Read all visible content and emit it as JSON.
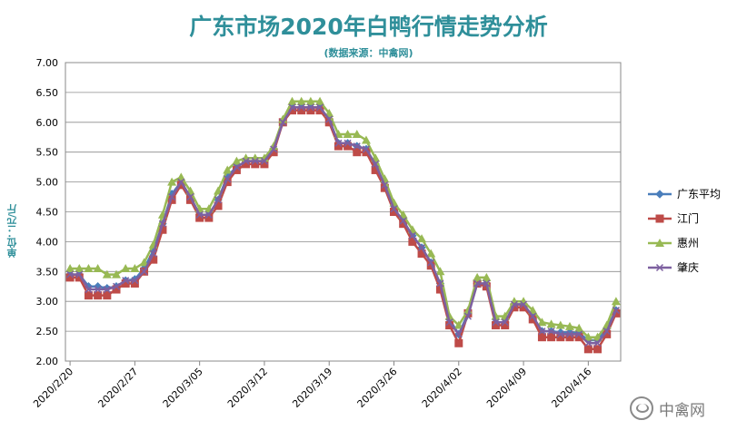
{
  "chart_data": {
    "type": "line",
    "title": "广东市场2020年白鸭行情走势分析",
    "subtitle": "(数据来源：中禽网)",
    "ylabel": "单位：元/斤",
    "ylim": [
      2.0,
      7.0
    ],
    "yticks": [
      "7.00",
      "6.50",
      "6.00",
      "5.50",
      "5.00",
      "4.50",
      "4.00",
      "3.50",
      "3.00",
      "2.50",
      "2.00"
    ],
    "xtick_labels": [
      "2020/2/20",
      "2020/2/27",
      "2020/3/05",
      "2020/3/12",
      "2020/3/19",
      "2020/3/26",
      "2020/4/02",
      "2020/4/09",
      "2020/4/16"
    ],
    "grid": true,
    "legend_position": "right",
    "x": [
      "2020/2/20",
      "2020/2/21",
      "2020/2/22",
      "2020/2/23",
      "2020/2/24",
      "2020/2/25",
      "2020/2/26",
      "2020/2/27",
      "2020/2/28",
      "2020/2/29",
      "2020/3/01",
      "2020/3/02",
      "2020/3/03",
      "2020/3/04",
      "2020/3/05",
      "2020/3/06",
      "2020/3/07",
      "2020/3/08",
      "2020/3/09",
      "2020/3/10",
      "2020/3/11",
      "2020/3/12",
      "2020/3/13",
      "2020/3/14",
      "2020/3/15",
      "2020/3/16",
      "2020/3/17",
      "2020/3/18",
      "2020/3/19",
      "2020/3/20",
      "2020/3/21",
      "2020/3/22",
      "2020/3/23",
      "2020/3/24",
      "2020/3/25",
      "2020/3/26",
      "2020/3/27",
      "2020/3/28",
      "2020/3/29",
      "2020/3/30",
      "2020/3/31",
      "2020/4/01",
      "2020/4/02",
      "2020/4/03",
      "2020/4/04",
      "2020/4/05",
      "2020/4/06",
      "2020/4/07",
      "2020/4/08",
      "2020/4/09",
      "2020/4/10",
      "2020/4/11",
      "2020/4/12",
      "2020/4/13",
      "2020/4/14",
      "2020/4/15",
      "2020/4/16",
      "2020/4/17",
      "2020/4/18",
      "2020/4/19"
    ],
    "series": [
      {
        "name": "广东平均",
        "color": "#4a7ebb",
        "marker": "diamond",
        "values": [
          3.45,
          3.45,
          3.25,
          3.25,
          3.22,
          3.25,
          3.35,
          3.37,
          3.55,
          3.85,
          4.3,
          4.8,
          5.0,
          4.75,
          4.45,
          4.45,
          4.7,
          5.1,
          5.25,
          5.35,
          5.35,
          5.35,
          5.55,
          6.0,
          6.25,
          6.25,
          6.25,
          6.25,
          6.05,
          5.65,
          5.65,
          5.6,
          5.55,
          5.3,
          4.95,
          4.55,
          4.35,
          4.1,
          3.9,
          3.65,
          3.3,
          2.7,
          2.45,
          2.8,
          3.3,
          3.3,
          2.65,
          2.65,
          2.95,
          2.95,
          2.75,
          2.5,
          2.5,
          2.48,
          2.48,
          2.47,
          2.35,
          2.35,
          2.55,
          2.85
        ]
      },
      {
        "name": "江门",
        "color": "#be4b48",
        "marker": "square",
        "values": [
          3.4,
          3.4,
          3.1,
          3.1,
          3.1,
          3.2,
          3.3,
          3.3,
          3.5,
          3.7,
          4.2,
          4.7,
          4.95,
          4.7,
          4.4,
          4.4,
          4.6,
          5.0,
          5.2,
          5.3,
          5.3,
          5.3,
          5.5,
          6.0,
          6.2,
          6.2,
          6.2,
          6.2,
          6.0,
          5.6,
          5.6,
          5.5,
          5.5,
          5.2,
          4.9,
          4.5,
          4.3,
          4.0,
          3.8,
          3.6,
          3.2,
          2.6,
          2.3,
          2.8,
          3.3,
          3.25,
          2.6,
          2.6,
          2.9,
          2.9,
          2.7,
          2.4,
          2.4,
          2.4,
          2.4,
          2.4,
          2.2,
          2.2,
          2.45,
          2.8
        ]
      },
      {
        "name": "惠州",
        "color": "#98b954",
        "marker": "triangle",
        "values": [
          3.55,
          3.55,
          3.55,
          3.55,
          3.45,
          3.45,
          3.55,
          3.55,
          3.65,
          3.95,
          4.45,
          5.0,
          5.08,
          4.85,
          4.55,
          4.55,
          4.85,
          5.2,
          5.35,
          5.4,
          5.4,
          5.4,
          5.6,
          6.05,
          6.35,
          6.35,
          6.35,
          6.35,
          6.15,
          5.8,
          5.8,
          5.8,
          5.7,
          5.4,
          5.05,
          4.65,
          4.45,
          4.2,
          4.05,
          3.8,
          3.5,
          2.75,
          2.6,
          2.85,
          3.4,
          3.4,
          2.75,
          2.75,
          3.0,
          3.0,
          2.85,
          2.65,
          2.62,
          2.6,
          2.58,
          2.55,
          2.4,
          2.4,
          2.6,
          3.0
        ]
      },
      {
        "name": "肇庆",
        "color": "#7d60a0",
        "marker": "x",
        "values": [
          3.45,
          3.45,
          3.2,
          3.2,
          3.2,
          3.25,
          3.35,
          3.35,
          3.5,
          3.8,
          4.3,
          4.75,
          5.0,
          4.75,
          4.45,
          4.45,
          4.7,
          5.05,
          5.25,
          5.35,
          5.35,
          5.35,
          5.55,
          6.0,
          6.25,
          6.25,
          6.25,
          6.25,
          6.05,
          5.65,
          5.65,
          5.6,
          5.55,
          5.3,
          4.95,
          4.55,
          4.35,
          4.1,
          3.9,
          3.65,
          3.3,
          2.65,
          2.45,
          2.75,
          3.3,
          3.3,
          2.65,
          2.65,
          2.95,
          2.95,
          2.75,
          2.5,
          2.5,
          2.45,
          2.45,
          2.45,
          2.3,
          2.3,
          2.5,
          2.85
        ]
      }
    ]
  },
  "watermark": {
    "text": "中禽网",
    "icon": "wechat-icon"
  }
}
